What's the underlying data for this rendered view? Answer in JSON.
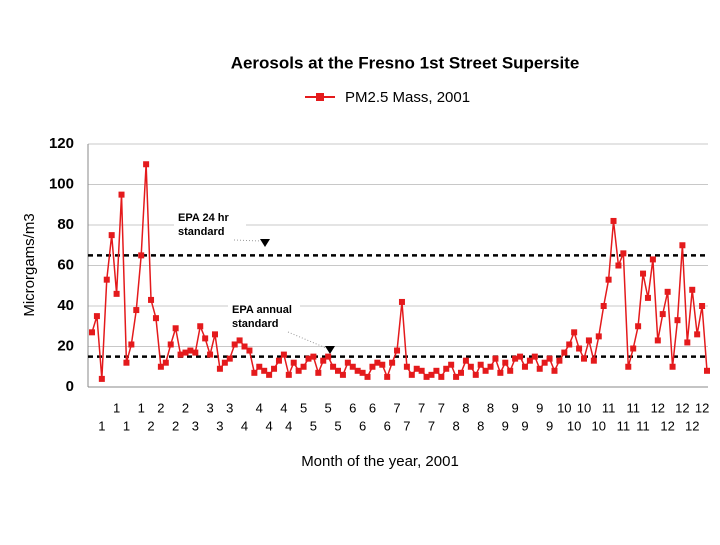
{
  "chart_data": {
    "type": "line",
    "title": "Aerosols at the Fresno 1st Street Supersite",
    "y_label": "Microrgams/m3",
    "x_label": "Month of the year, 2001",
    "ylim": [
      0,
      120
    ],
    "yticks": [
      0,
      20,
      40,
      60,
      80,
      100,
      120
    ],
    "grid": true,
    "categories": [
      null,
      null,
      "1",
      null,
      null,
      "1",
      null,
      "1",
      null,
      null,
      "1",
      null,
      "2",
      null,
      "2",
      null,
      null,
      "2",
      null,
      "2",
      null,
      "3",
      null,
      null,
      "3",
      null,
      "3",
      null,
      "3",
      null,
      null,
      "4",
      null,
      null,
      "4",
      null,
      "4",
      null,
      null,
      "4",
      "4",
      null,
      null,
      "5",
      null,
      "5",
      null,
      null,
      "5",
      null,
      "5",
      null,
      null,
      "6",
      null,
      "6",
      null,
      "6",
      null,
      null,
      "6",
      null,
      "7",
      null,
      "7",
      null,
      null,
      "7",
      null,
      "7",
      null,
      "7",
      null,
      null,
      "8",
      null,
      "8",
      null,
      null,
      "8",
      null,
      "8",
      null,
      null,
      "9",
      null,
      "9",
      null,
      "9",
      null,
      null,
      "9",
      null,
      "9",
      null,
      null,
      "10",
      null,
      "10",
      null,
      "10",
      null,
      null,
      "10",
      null,
      "11",
      null,
      null,
      "11",
      null,
      "11",
      null,
      "11",
      null,
      null,
      "12",
      null,
      "12",
      null,
      null,
      "12",
      null,
      "12",
      null,
      "12",
      null
    ],
    "series": [
      {
        "name": "PM2.5 Mass, 2001",
        "color": "#e41a1c",
        "values": [
          27,
          35,
          4,
          53,
          75,
          46,
          95,
          12,
          21,
          38,
          65,
          110,
          43,
          34,
          10,
          12,
          21,
          29,
          16,
          17,
          18,
          17,
          30,
          24,
          16,
          26,
          9,
          12,
          14,
          21,
          23,
          20,
          18,
          7,
          10,
          8,
          6,
          9,
          13,
          16,
          6,
          12,
          8,
          10,
          14,
          15,
          7,
          13,
          15,
          10,
          8,
          6,
          12,
          10,
          8,
          7,
          5,
          10,
          12,
          11,
          5,
          12,
          18,
          42,
          10,
          6,
          9,
          8,
          5,
          6,
          8,
          5,
          9,
          11,
          5,
          7,
          13,
          10,
          6,
          11,
          8,
          10,
          14,
          7,
          12,
          8,
          14,
          15,
          10,
          13,
          15,
          9,
          12,
          14,
          8,
          13,
          17,
          21,
          27,
          19,
          14,
          23,
          13,
          25,
          40,
          53,
          82,
          60,
          66,
          10,
          19,
          30,
          56,
          44,
          63,
          23,
          36,
          47,
          10,
          33,
          70,
          22,
          48,
          26,
          40,
          8
        ]
      }
    ],
    "reference_lines": [
      {
        "value": 65,
        "label": [
          "EPA 24 hr",
          "standard"
        ]
      },
      {
        "value": 15,
        "label": [
          "EPA annual",
          "standard"
        ]
      }
    ]
  }
}
